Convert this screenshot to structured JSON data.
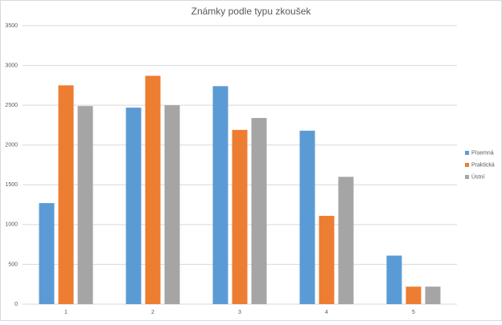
{
  "chart_data": {
    "type": "bar",
    "title": "Známky podle typu zkoušek",
    "categories": [
      "1",
      "2",
      "3",
      "4",
      "5"
    ],
    "series": [
      {
        "name": "Písemná",
        "color": "#5b9bd5",
        "values": [
          1270,
          2470,
          2740,
          2180,
          610
        ]
      },
      {
        "name": "Praktická",
        "color": "#ed7d31",
        "values": [
          2750,
          2870,
          2190,
          1110,
          220
        ]
      },
      {
        "name": "Ústní",
        "color": "#a5a5a5",
        "values": [
          2490,
          2500,
          2340,
          1600,
          220
        ]
      }
    ],
    "ylim": [
      0,
      3500
    ],
    "yticks": [
      0,
      500,
      1000,
      1500,
      2000,
      2500,
      3000,
      3500
    ],
    "grid": true,
    "legend": "right"
  }
}
